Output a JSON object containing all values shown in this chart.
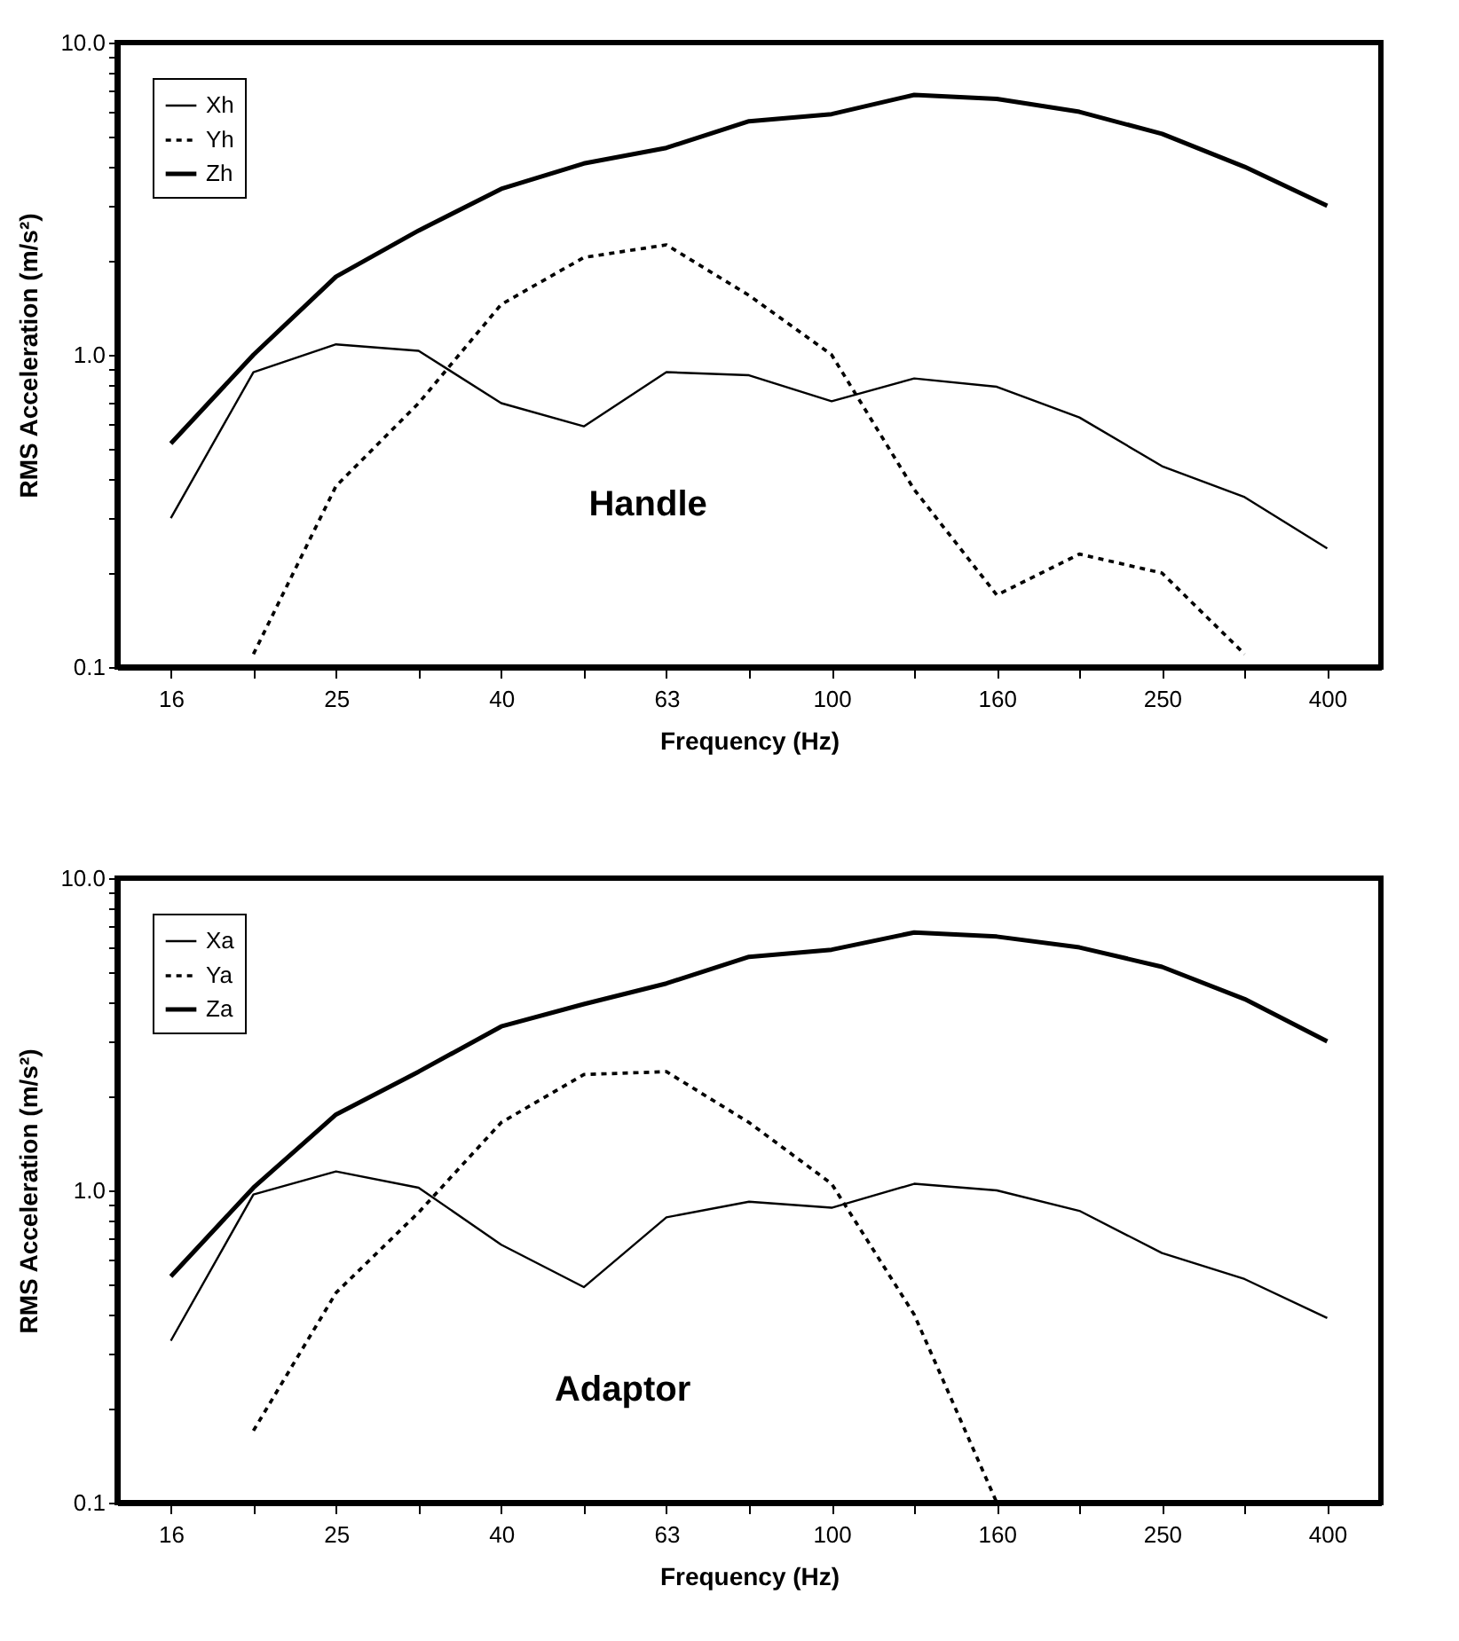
{
  "chart_data": [
    {
      "type": "line",
      "annotations": [
        "Handle"
      ],
      "xlabel": "Frequency (Hz)",
      "ylabel": "RMS Acceleration (m/s²)",
      "categories": [
        "16",
        null,
        "25",
        null,
        "40",
        null,
        "63",
        null,
        "100",
        null,
        "160",
        null,
        "250",
        null,
        "400"
      ],
      "log": "y",
      "ylim": [
        0.1,
        10
      ],
      "yticks": [
        {
          "value": 0.1,
          "label": "0.1"
        },
        {
          "value": 0.2,
          "label": null
        },
        {
          "value": 0.3,
          "label": null
        },
        {
          "value": 0.4,
          "label": null
        },
        {
          "value": 0.5,
          "label": null
        },
        {
          "value": 0.6,
          "label": null
        },
        {
          "value": 0.7,
          "label": null
        },
        {
          "value": 0.8,
          "label": null
        },
        {
          "value": 0.9,
          "label": null
        },
        {
          "value": 1,
          "label": "1.0"
        },
        {
          "value": 2,
          "label": null
        },
        {
          "value": 3,
          "label": null
        },
        {
          "value": 4,
          "label": null
        },
        {
          "value": 5,
          "label": null
        },
        {
          "value": 6,
          "label": null
        },
        {
          "value": 7,
          "label": null
        },
        {
          "value": 8,
          "label": null
        },
        {
          "value": 9,
          "label": null
        },
        {
          "value": 10,
          "label": "10.0"
        }
      ],
      "grid": false,
      "legend": "top left",
      "marker": "none",
      "series": [
        {
          "name": "Xh",
          "color": "#000000",
          "line_style": "solid",
          "values": [
            0.3,
            0.88,
            1.08,
            1.03,
            0.7,
            0.59,
            0.88,
            0.86,
            0.71,
            0.84,
            0.79,
            0.63,
            0.44,
            0.35,
            0.24
          ]
        },
        {
          "name": "Yh",
          "color": "#000000",
          "line_style": "dotted",
          "values": [
            null,
            0.11,
            0.38,
            0.7,
            1.45,
            2.05,
            2.25,
            1.55,
            1.0,
            0.37,
            0.17,
            0.23,
            0.2,
            0.11,
            null
          ]
        },
        {
          "name": "Zh",
          "color": "#000000",
          "line_style": "solid",
          "values": [
            0.52,
            1.0,
            1.78,
            2.5,
            3.4,
            4.1,
            4.6,
            5.6,
            5.9,
            6.8,
            6.6,
            6.0,
            5.1,
            4.0,
            3.0
          ]
        }
      ]
    },
    {
      "type": "line",
      "annotations": [
        "Adaptor"
      ],
      "xlabel": "Frequency (Hz)",
      "ylabel": "RMS Acceleration (m/s²)",
      "categories": [
        "16",
        null,
        "25",
        null,
        "40",
        null,
        "63",
        null,
        "100",
        null,
        "160",
        null,
        "250",
        null,
        "400"
      ],
      "log": "y",
      "ylim": [
        0.1,
        10
      ],
      "yticks": [
        {
          "value": 0.1,
          "label": "0.1"
        },
        {
          "value": 0.2,
          "label": null
        },
        {
          "value": 0.3,
          "label": null
        },
        {
          "value": 0.4,
          "label": null
        },
        {
          "value": 0.5,
          "label": null
        },
        {
          "value": 0.6,
          "label": null
        },
        {
          "value": 0.7,
          "label": null
        },
        {
          "value": 0.8,
          "label": null
        },
        {
          "value": 0.9,
          "label": null
        },
        {
          "value": 1,
          "label": "1.0"
        },
        {
          "value": 2,
          "label": null
        },
        {
          "value": 3,
          "label": null
        },
        {
          "value": 4,
          "label": null
        },
        {
          "value": 5,
          "label": null
        },
        {
          "value": 6,
          "label": null
        },
        {
          "value": 7,
          "label": null
        },
        {
          "value": 8,
          "label": null
        },
        {
          "value": 9,
          "label": null
        },
        {
          "value": 10,
          "label": "10.0"
        }
      ],
      "grid": false,
      "legend": "top left",
      "marker": "none",
      "series": [
        {
          "name": "Xa",
          "color": "#000000",
          "line_style": "solid",
          "values": [
            0.33,
            0.97,
            1.15,
            1.02,
            0.67,
            0.49,
            0.82,
            0.92,
            0.88,
            1.05,
            1.0,
            0.86,
            0.63,
            0.52,
            0.39
          ]
        },
        {
          "name": "Ya",
          "color": "#000000",
          "line_style": "dotted",
          "values": [
            null,
            0.17,
            0.47,
            0.85,
            1.65,
            2.35,
            2.4,
            1.65,
            1.05,
            0.4,
            0.1,
            null,
            null,
            null,
            null
          ]
        },
        {
          "name": "Za",
          "color": "#000000",
          "line_style": "solid",
          "values": [
            0.53,
            1.02,
            1.75,
            2.4,
            3.35,
            3.95,
            4.6,
            5.6,
            5.9,
            6.7,
            6.5,
            6.0,
            5.2,
            4.1,
            3.0
          ]
        }
      ]
    }
  ]
}
